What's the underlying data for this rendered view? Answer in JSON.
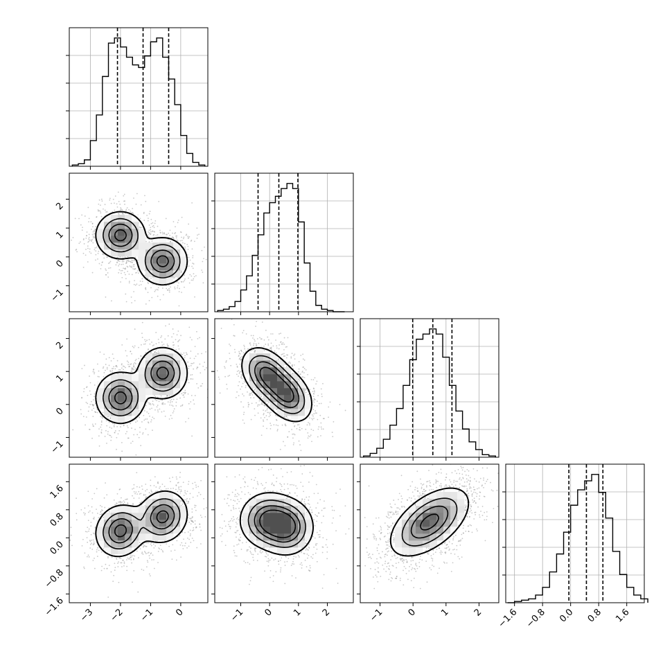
{
  "chart_data": {
    "type": "corner",
    "parameters": 4,
    "quantile_style": "dashed",
    "grid": true,
    "colors": {
      "ink": "#000000",
      "grid": "#b0b0b0",
      "scatter": "#9a9a9a"
    },
    "panels": [
      {
        "type": "histogram",
        "row": 0,
        "col": 0,
        "xlim": [
          -3.7,
          0.9
        ],
        "xticks": [
          -3,
          -2,
          -1,
          0
        ],
        "bins_x": [
          -3.6,
          -3.4,
          -3.2,
          -3.0,
          -2.8,
          -2.6,
          -2.4,
          -2.2,
          -2.0,
          -1.8,
          -1.6,
          -1.4,
          -1.2,
          -1.0,
          -0.8,
          -0.6,
          -0.4,
          -0.2,
          0.0,
          0.2,
          0.4,
          0.6
        ],
        "counts": [
          1,
          2,
          5,
          20,
          40,
          70,
          96,
          100,
          93,
          85,
          79,
          77,
          86,
          97,
          100,
          85,
          68,
          48,
          24,
          10,
          3,
          1
        ],
        "quantiles": [
          -2.1,
          -1.25,
          -0.4
        ]
      },
      {
        "type": "histogram",
        "row": 1,
        "col": 1,
        "xlim": [
          -1.9,
          2.9
        ],
        "xticks": [
          -1,
          0,
          1,
          2
        ],
        "bins_x": [
          -1.8,
          -1.6,
          -1.4,
          -1.2,
          -1.0,
          -0.8,
          -0.6,
          -0.4,
          -0.2,
          0.0,
          0.2,
          0.4,
          0.6,
          0.8,
          1.0,
          1.2,
          1.4,
          1.6,
          1.8,
          2.0,
          2.2,
          2.4
        ],
        "counts": [
          1,
          2,
          4,
          8,
          17,
          28,
          44,
          60,
          77,
          85,
          90,
          96,
          100,
          96,
          70,
          38,
          16,
          5,
          2,
          1,
          0,
          0
        ],
        "quantiles": [
          -0.4,
          0.32,
          0.98
        ]
      },
      {
        "type": "histogram",
        "row": 2,
        "col": 2,
        "xlim": [
          -1.6,
          2.6
        ],
        "xticks": [
          -1,
          0,
          1,
          2
        ],
        "bins_x": [
          -1.5,
          -1.3,
          -1.1,
          -0.9,
          -0.7,
          -0.5,
          -0.3,
          -0.1,
          0.1,
          0.3,
          0.5,
          0.7,
          0.9,
          1.1,
          1.3,
          1.5,
          1.7,
          1.9,
          2.1,
          2.3
        ],
        "counts": [
          1,
          3,
          7,
          14,
          25,
          38,
          56,
          76,
          92,
          96,
          100,
          96,
          78,
          56,
          36,
          22,
          12,
          6,
          2,
          1
        ],
        "quantiles": [
          -0.01,
          0.6,
          1.18
        ]
      },
      {
        "type": "histogram",
        "row": 3,
        "col": 3,
        "xlim": [
          -1.85,
          2.1
        ],
        "xticks": [
          -1.6,
          -0.8,
          0.0,
          0.8,
          1.6
        ],
        "xtick_labels": [
          "−1.6",
          "−0.8",
          "0.0",
          "0.8",
          "1.6"
        ],
        "bins_x": [
          -1.8,
          -1.6,
          -1.4,
          -1.2,
          -1.0,
          -0.8,
          -0.6,
          -0.4,
          -0.2,
          0.0,
          0.2,
          0.4,
          0.6,
          0.8,
          1.0,
          1.2,
          1.4,
          1.6,
          1.8,
          2.0
        ],
        "counts": [
          0,
          1,
          2,
          3,
          6,
          12,
          24,
          38,
          55,
          76,
          88,
          95,
          100,
          86,
          66,
          40,
          22,
          12,
          6,
          3
        ],
        "quantiles": [
          -0.05,
          0.45,
          0.92
        ]
      },
      {
        "type": "density2d",
        "row": 1,
        "col": 0,
        "xlim": [
          -3.7,
          0.9
        ],
        "ylim": [
          -1.9,
          2.9
        ],
        "yticks": [
          -1,
          0,
          1,
          2
        ],
        "modes": [
          {
            "x": -2.0,
            "y": 0.75,
            "sx": 0.38,
            "sy": 0.38,
            "rho": 0.0
          },
          {
            "x": -0.6,
            "y": -0.15,
            "sx": 0.38,
            "sy": 0.38,
            "rho": 0.0
          }
        ]
      },
      {
        "type": "density2d",
        "row": 2,
        "col": 0,
        "xlim": [
          -3.7,
          0.9
        ],
        "ylim": [
          -1.6,
          2.6
        ],
        "yticks": [
          -1,
          0,
          1,
          2
        ],
        "modes": [
          {
            "x": -2.0,
            "y": 0.2,
            "sx": 0.38,
            "sy": 0.36,
            "rho": 0.0
          },
          {
            "x": -0.6,
            "y": 0.95,
            "sx": 0.38,
            "sy": 0.36,
            "rho": 0.0
          }
        ]
      },
      {
        "type": "density2d",
        "row": 2,
        "col": 1,
        "xlim": [
          -1.9,
          2.9
        ],
        "ylim": [
          -1.6,
          2.6
        ],
        "modes": [
          {
            "x": 0.6,
            "y": 0.3,
            "sx": 0.4,
            "sy": 0.38,
            "rho": -0.35
          },
          {
            "x": -0.1,
            "y": 0.9,
            "sx": 0.4,
            "sy": 0.38,
            "rho": -0.35
          }
        ]
      },
      {
        "type": "density2d",
        "row": 3,
        "col": 0,
        "xlim": [
          -3.7,
          0.9
        ],
        "ylim": [
          -1.85,
          2.1
        ],
        "yticks": [
          -1.6,
          -0.8,
          0.0,
          0.8,
          1.6
        ],
        "ytick_labels": [
          "−1.6",
          "−0.8",
          "0.0",
          "0.8",
          "1.6"
        ],
        "xticks": [
          -3,
          -2,
          -1,
          0
        ],
        "xtick_labels": [
          "−3",
          "−2",
          "−1",
          "0"
        ],
        "modes": [
          {
            "x": -2.0,
            "y": 0.2,
            "sx": 0.38,
            "sy": 0.34,
            "rho": 0.1
          },
          {
            "x": -0.6,
            "y": 0.6,
            "sx": 0.38,
            "sy": 0.34,
            "rho": 0.1
          }
        ]
      },
      {
        "type": "density2d",
        "row": 3,
        "col": 1,
        "xlim": [
          -1.9,
          2.9
        ],
        "ylim": [
          -1.85,
          2.1
        ],
        "xticks": [
          -1,
          0,
          1,
          2
        ],
        "xtick_labels": [
          "−1",
          "0",
          "1",
          "2"
        ],
        "modes": [
          {
            "x": -0.05,
            "y": 0.5,
            "sx": 0.45,
            "sy": 0.36,
            "rho": 0.0
          },
          {
            "x": 0.6,
            "y": 0.3,
            "sx": 0.42,
            "sy": 0.36,
            "rho": 0.0
          }
        ]
      },
      {
        "type": "density2d",
        "row": 3,
        "col": 2,
        "xlim": [
          -1.6,
          2.6
        ],
        "ylim": [
          -1.85,
          2.1
        ],
        "xticks": [
          -1,
          0,
          1,
          2
        ],
        "xtick_labels": [
          "−1",
          "0",
          "1",
          "2"
        ],
        "modes": [
          {
            "x": 0.5,
            "y": 0.45,
            "sx": 0.55,
            "sy": 0.45,
            "rho": 0.55
          }
        ]
      }
    ],
    "left_tick_labels": {
      "row1": [
        "−1",
        "0",
        "1",
        "2"
      ],
      "row2": [
        "−1",
        "0",
        "1",
        "2"
      ]
    }
  }
}
